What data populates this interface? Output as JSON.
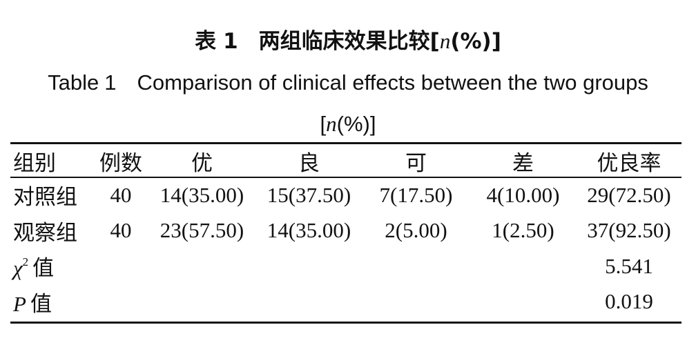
{
  "title_cn": {
    "prefix": "表",
    "number": "1",
    "text": "两组临床效果比较[",
    "n": "n",
    "suffix": "(%)]"
  },
  "title_en": {
    "prefix": "Table",
    "number": "1",
    "text": "Comparison of clinical effects between the two groups",
    "line2_open": "[",
    "n": "n",
    "line2_close": "(%)]"
  },
  "table": {
    "headers": [
      "组别",
      "例数",
      "优",
      "良",
      "可",
      "差",
      "优良率"
    ],
    "rows": [
      [
        "对照组",
        "40",
        "14(35.00)",
        "15(37.50)",
        "7(17.50)",
        "4(10.00)",
        "29(72.50)"
      ],
      [
        "观察组",
        "40",
        "23(57.50)",
        "14(35.00)",
        "2(5.00)",
        "1(2.50)",
        "37(92.50)"
      ]
    ],
    "stats": {
      "chi_symbol": "χ",
      "chi_sup": "2",
      "chi_suffix": "值",
      "chi_value": "5.541",
      "p_symbol": "P",
      "p_suffix": "值",
      "p_value": "0.019"
    }
  }
}
